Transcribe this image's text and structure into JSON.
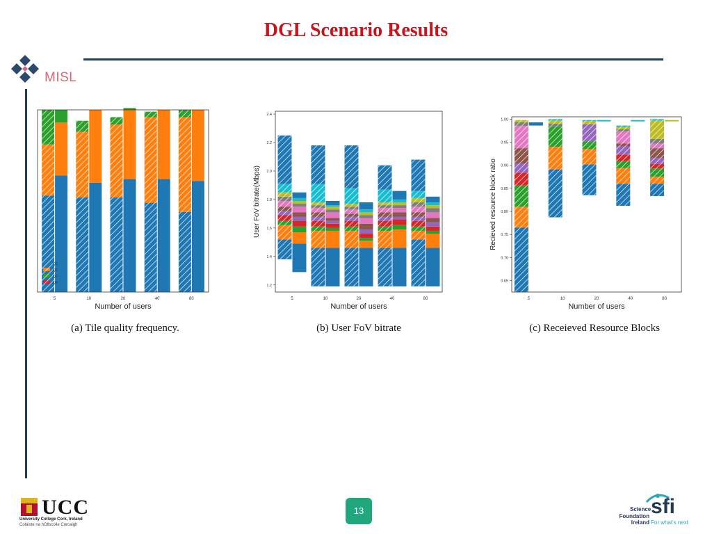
{
  "title": "DGL Scenario Results",
  "logos": {
    "misl": "MISL",
    "ucc": "UCC",
    "ucc_line1": "University College Cork, Ireland",
    "ucc_line2": "Coláiste na hOllscoile Corcaigh",
    "sfi_line1": "Science",
    "sfi_line2": "Foundation",
    "sfi_line3": "Ireland",
    "sfi_mark": "sfi",
    "sfi_tagline": "For what's next"
  },
  "page_number": "13",
  "colors": {
    "title": "#c4161c",
    "rule": "#1f3c5a",
    "badge": "#22a77c",
    "palette": [
      "#1f77b4",
      "#ff7f0e",
      "#2ca02c",
      "#d62728",
      "#9467bd",
      "#8c564b",
      "#e377c2",
      "#7f7f7f",
      "#bcbd22",
      "#17becf"
    ]
  },
  "chart_data": [
    {
      "type": "bar",
      "stacked": true,
      "caption": "(a) Tile quality frequency.",
      "xlabel": "Number of users",
      "ylabel": "",
      "categories": [
        "5",
        "10",
        "20",
        "40",
        "80"
      ],
      "paired_bars": true,
      "hatched_first_bar": true,
      "ylim": [
        0,
        1
      ],
      "legend": [
        "Q1",
        "Q2",
        "Q3",
        "Q4"
      ],
      "legend_position": "bottom-left",
      "series": [
        {
          "name": "Q1",
          "hatched": [
            0.53,
            0.52,
            0.52,
            0.49,
            0.44
          ],
          "solid": [
            0.64,
            0.6,
            0.62,
            0.62,
            0.61
          ]
        },
        {
          "name": "Q2",
          "hatched": [
            0.28,
            0.36,
            0.4,
            0.47,
            0.52
          ],
          "solid": [
            0.29,
            0.4,
            0.38,
            0.38,
            0.39
          ]
        },
        {
          "name": "Q3",
          "hatched": [
            0.19,
            0.06,
            0.04,
            0.03,
            0.04
          ],
          "solid": [
            0.07,
            0.0,
            0.01,
            0.0,
            0.0
          ]
        },
        {
          "name": "Q4",
          "hatched": [
            0.0,
            0.0,
            0.0,
            0.0,
            0.0
          ],
          "solid": [
            0.0,
            0.0,
            0.0,
            0.0,
            0.0
          ]
        }
      ]
    },
    {
      "type": "bar",
      "stacked": true,
      "caption": "(b) User FoV bitrate",
      "xlabel": "Number of users",
      "ylabel": "User FoV bitrate(Mbps)",
      "categories": [
        "5",
        "10",
        "20",
        "40",
        "80"
      ],
      "yticks": [
        "1.2",
        "1.4",
        "1.6",
        "1.8",
        "2.0",
        "2.2",
        "2.4"
      ],
      "ylim": [
        1.15,
        2.42
      ],
      "floating_stacks": true,
      "hatched": {
        "base": [
          1.38,
          1.19,
          1.19,
          1.19,
          1.19
        ],
        "segments": [
          [
            0.14,
            0.27,
            0.27,
            0.27,
            0.33
          ],
          [
            0.1,
            0.12,
            0.12,
            0.12,
            0.06
          ],
          [
            0.03,
            0.03,
            0.03,
            0.03,
            0.03
          ],
          [
            0.04,
            0.04,
            0.04,
            0.04,
            0.04
          ],
          [
            0.03,
            0.03,
            0.03,
            0.03,
            0.03
          ],
          [
            0.03,
            0.03,
            0.02,
            0.03,
            0.03
          ],
          [
            0.04,
            0.03,
            0.03,
            0.03,
            0.04
          ],
          [
            0.03,
            0.02,
            0.02,
            0.02,
            0.03
          ],
          [
            0.03,
            0.02,
            0.02,
            0.02,
            0.03
          ],
          [
            0.06,
            0.13,
            0.11,
            0.09,
            0.05
          ],
          [
            0.34,
            0.27,
            0.3,
            0.17,
            0.22
          ]
        ]
      },
      "solid": {
        "base": [
          1.29,
          1.19,
          1.19,
          1.19,
          1.19
        ],
        "segments": [
          [
            0.2,
            0.27,
            0.27,
            0.27,
            0.27
          ],
          [
            0.08,
            0.12,
            0.05,
            0.13,
            0.1
          ],
          [
            0.04,
            0.02,
            0.02,
            0.03,
            0.02
          ],
          [
            0.04,
            0.03,
            0.03,
            0.04,
            0.03
          ],
          [
            0.03,
            0.02,
            0.03,
            0.02,
            0.03
          ],
          [
            0.03,
            0.02,
            0.04,
            0.03,
            0.03
          ],
          [
            0.04,
            0.04,
            0.04,
            0.03,
            0.04
          ],
          [
            0.02,
            0.02,
            0.02,
            0.02,
            0.03
          ],
          [
            0.02,
            0.02,
            0.02,
            0.02,
            0.02
          ],
          [
            0.02,
            0.01,
            0.02,
            0.02,
            0.02
          ],
          [
            0.04,
            0.03,
            0.05,
            0.06,
            0.04
          ]
        ]
      }
    },
    {
      "type": "bar",
      "stacked": true,
      "caption": "(c) Receieved Resource Blocks",
      "xlabel": "Number of users",
      "ylabel": "Recieved resource block ratio",
      "categories": [
        "5",
        "10",
        "20",
        "40",
        "80"
      ],
      "yticks": [
        "0.65",
        "0.70",
        "0.75",
        "0.80",
        "0.85",
        "0.90",
        "0.95",
        "1.00"
      ],
      "ylim": [
        0.625,
        1.005
      ],
      "floating_stacks": true,
      "hatched": {
        "base": [
          0.62,
          0.787,
          0.835,
          0.812,
          0.833
        ],
        "segments": [
          [
            0.145,
            0.104,
            0.067,
            0.048,
            0.027
          ],
          [
            0.045,
            0.049,
            0.033,
            0.034,
            0.015
          ],
          [
            0.046,
            0.044,
            0.017,
            0.015,
            0.018
          ],
          [
            0.028,
            0.0,
            0.0,
            0.014,
            0.01
          ],
          [
            0.02,
            0.0,
            0.037,
            0.018,
            0.013
          ],
          [
            0.033,
            0.0,
            0.0,
            0.006,
            0.021
          ],
          [
            0.048,
            0.0,
            0.0,
            0.026,
            0.01
          ],
          [
            0.008,
            0.006,
            0.0,
            0.005,
            0.01
          ],
          [
            0.005,
            0.007,
            0.007,
            0.005,
            0.04
          ],
          [
            0.0,
            0.003,
            0.002,
            0.003,
            0.003
          ]
        ]
      },
      "solid": {
        "base": [
          0.986,
          0.995,
          0.995,
          0.995,
          0.995
        ],
        "segments": [
          [
            0.007,
            0.0,
            0.0,
            0.0,
            0.0
          ],
          [
            0.0,
            0.0,
            0.0,
            0.0,
            0.0
          ],
          [
            0.0,
            0.0,
            0.0,
            0.0,
            0.0
          ],
          [
            0.0,
            0.0,
            0.0,
            0.0,
            0.0
          ],
          [
            0.0,
            0.0,
            0.0,
            0.0,
            0.0
          ],
          [
            0.0,
            0.0,
            0.0,
            0.0,
            0.0
          ],
          [
            0.0,
            0.0,
            0.0,
            0.0,
            0.0
          ],
          [
            0.0,
            0.0,
            0.0,
            0.0,
            0.0
          ],
          [
            0.0,
            0.0,
            0.0,
            0.0,
            0.003
          ],
          [
            0.0,
            0.0,
            0.003,
            0.003,
            0.0
          ]
        ]
      }
    }
  ]
}
